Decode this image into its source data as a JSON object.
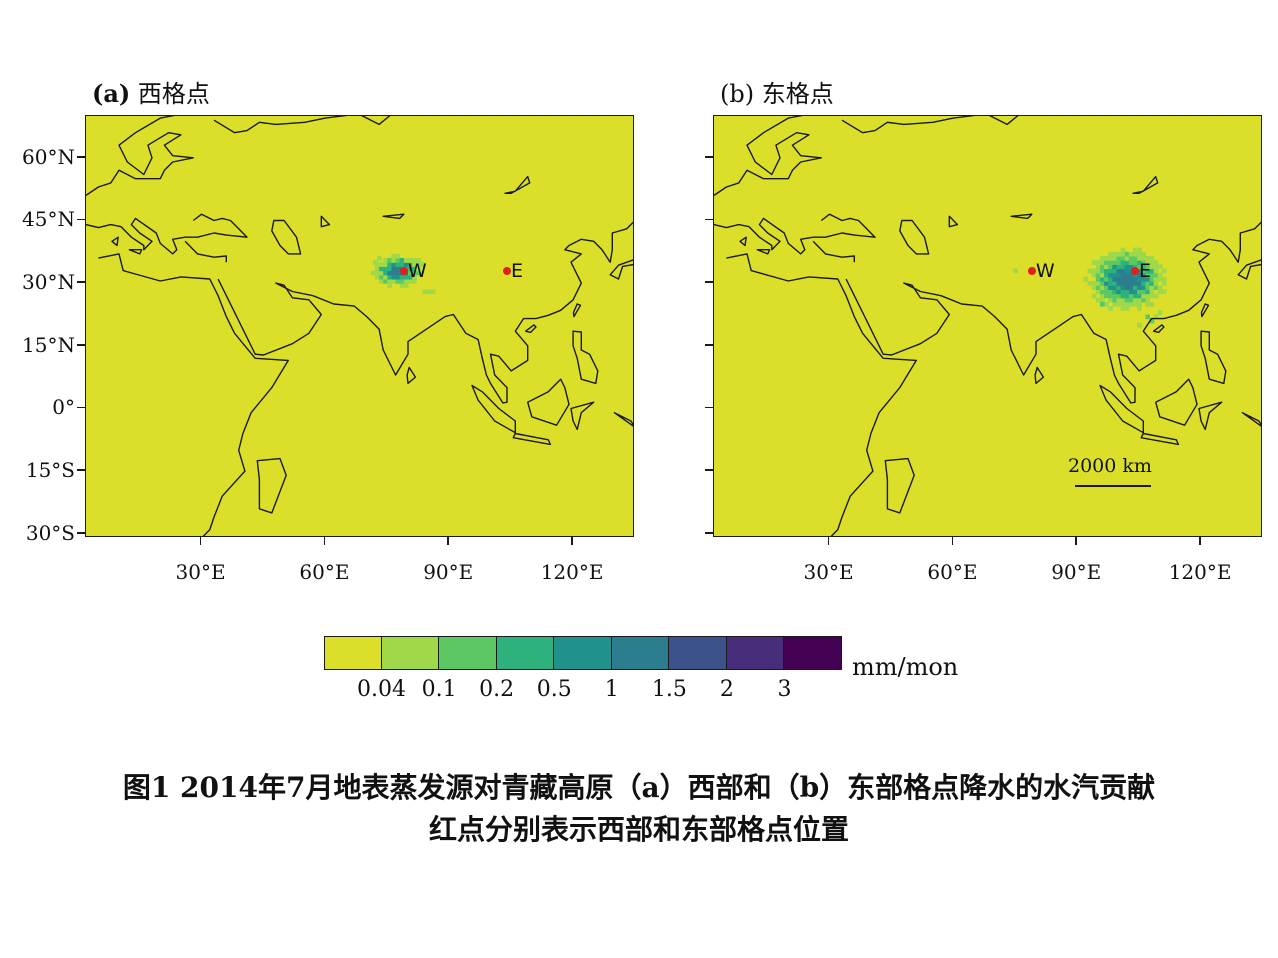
{
  "panels": [
    {
      "title": "(a) 西格点",
      "title_prefix": "(a)",
      "title_name": "西格点",
      "source_point": "W",
      "points": [
        {
          "label": "W",
          "lon": 79,
          "lat": 33
        },
        {
          "label": "E",
          "lon": 104,
          "lat": 33
        }
      ]
    },
    {
      "title": "(b) 东格点",
      "title_prefix": "(b)",
      "title_name": "东格点",
      "source_point": "E",
      "points": [
        {
          "label": "W",
          "lon": 79,
          "lat": 33
        },
        {
          "label": "E",
          "lon": 104,
          "lat": 33
        }
      ],
      "scalebar": "2000 km"
    }
  ],
  "axes": {
    "lat_ticks": [
      {
        "value": 60,
        "label": "60°N"
      },
      {
        "value": 45,
        "label": "45°N"
      },
      {
        "value": 30,
        "label": "30°N"
      },
      {
        "value": 15,
        "label": "15°N"
      },
      {
        "value": 0,
        "label": "0°"
      },
      {
        "value": -15,
        "label": "15°S"
      },
      {
        "value": -30,
        "label": "30°S"
      }
    ],
    "lon_ticks": [
      {
        "value": 30,
        "label": "30°E"
      },
      {
        "value": 60,
        "label": "60°E"
      },
      {
        "value": 90,
        "label": "90°E"
      },
      {
        "value": 120,
        "label": "120°E"
      }
    ],
    "lon_range": [
      2,
      135
    ],
    "lat_range": [
      -31,
      70
    ]
  },
  "colorbar": {
    "colors": [
      "#dcdf2a",
      "#9fd94a",
      "#5cc863",
      "#2db27d",
      "#21918c",
      "#2c7e8e",
      "#3b528b",
      "#472d7b",
      "#440154"
    ],
    "labels": [
      "0.04",
      "0.1",
      "0.2",
      "0.5",
      "1",
      "1.5",
      "2",
      "3"
    ],
    "unit": "mm/mon"
  },
  "caption": {
    "line1": "图1 2014年7月地表蒸发源对青藏高原（a）西部和（b）东部格点降水的水汽贡献",
    "line2": "红点分别表示西部和东部格点位置"
  }
}
